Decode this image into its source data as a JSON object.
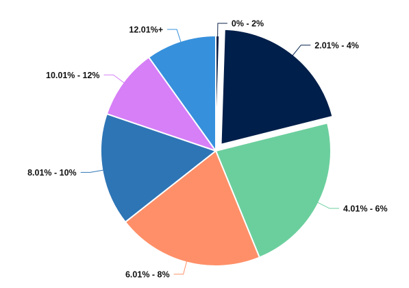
{
  "chart_data": {
    "type": "pie",
    "title": "",
    "categories": [
      "0% - 2%",
      "2.01% - 4%",
      "4.01% - 6%",
      "6.01% - 8%",
      "8.01% - 10%",
      "10.01% - 12%",
      "12.01%+"
    ],
    "values": [
      0.5,
      20.6,
      22.7,
      20.6,
      15.8,
      9.9,
      9.9
    ],
    "colors": [
      "#0b1f47",
      "#001f4a",
      "#6bcf9d",
      "#ff8f68",
      "#2e75b6",
      "#d67ff7",
      "#3790dc"
    ],
    "exploded": [
      "2.01% - 4%"
    ],
    "legend": "none"
  }
}
